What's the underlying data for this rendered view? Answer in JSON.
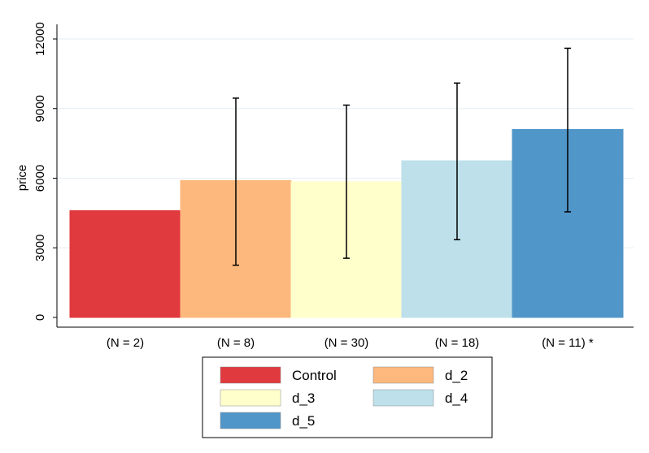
{
  "chart_data": {
    "type": "bar",
    "ylabel": "price",
    "yticks": [
      0,
      3000,
      6000,
      9000,
      12000
    ],
    "ylim": [
      0,
      12000
    ],
    "grid": true,
    "legend_placement": "bottom",
    "categories": [
      "(N = 2)",
      "(N = 8)",
      "(N = 30)",
      "(N = 18)",
      "(N = 11) *"
    ],
    "series": [
      {
        "name": "Control",
        "value": 4600,
        "color": "#e0393e",
        "ci_low": null,
        "ci_high": null
      },
      {
        "name": "d_2",
        "value": 5900,
        "color": "#fdb87d",
        "ci_low": 2250,
        "ci_high": 9450
      },
      {
        "name": "d_3",
        "value": 5850,
        "color": "#ffffcc",
        "ci_low": 2550,
        "ci_high": 9150
      },
      {
        "name": "d_4",
        "value": 6750,
        "color": "#bde0eb",
        "ci_low": 3350,
        "ci_high": 10100
      },
      {
        "name": "d_5",
        "value": 8100,
        "color": "#5196c9",
        "ci_low": 4550,
        "ci_high": 11600
      }
    ]
  }
}
